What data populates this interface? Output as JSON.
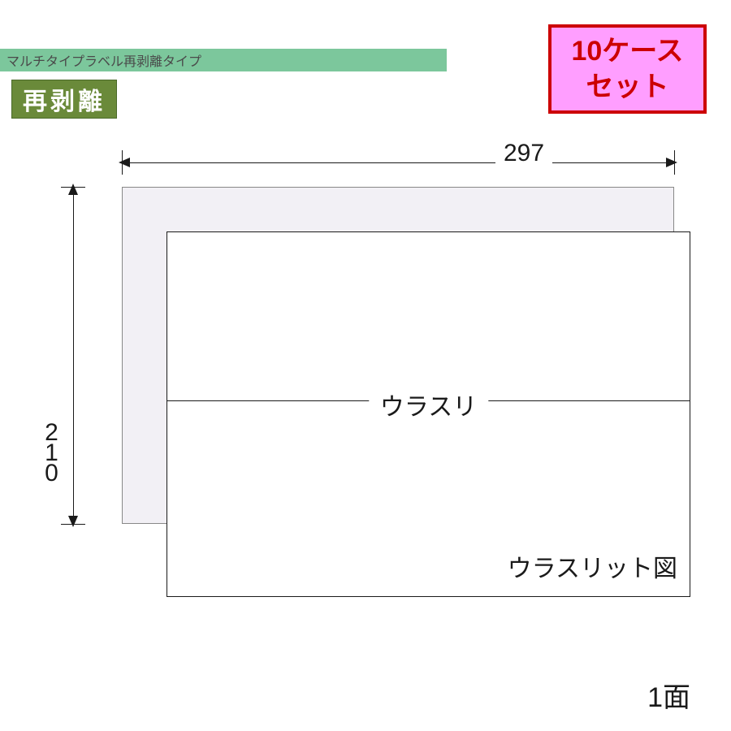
{
  "header": {
    "bar_text": "マルチタイプラベル再剥離タイプ",
    "bar_bg_color": "#7cc79c",
    "bar_text_color": "#4a4a4a"
  },
  "peel_badge": {
    "text": "再剥離",
    "bg_color": "#6a8a3a",
    "text_color": "#ffffff",
    "border_color": "#4a6a2a"
  },
  "case_badge": {
    "line1": "10ケース",
    "line2": "セット",
    "bg_color": "#ff9eff",
    "border_color": "#cc0000",
    "text_color": "#cc0000"
  },
  "diagram": {
    "type": "dimensioned-drawing",
    "width_mm": 297,
    "height_mm": 210,
    "width_label": "297",
    "height_label": "210",
    "back_sheet_color": "#f2f0f5",
    "front_sheet_color": "#ffffff",
    "line_color": "#1a1a1a",
    "slit_label": "ウラスリ",
    "slit_diagram_label": "ウラスリット図",
    "face_count_label": "1面",
    "label_fontsize": 30
  }
}
